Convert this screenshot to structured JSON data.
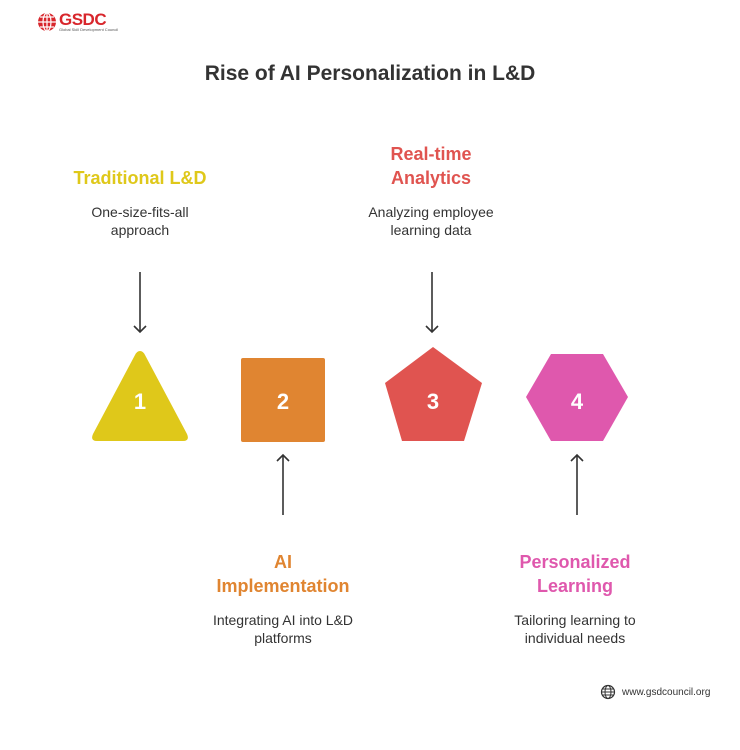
{
  "brand": {
    "logo_text": "GSDC",
    "logo_tagline": "Global Skill Development Council"
  },
  "title": "Rise of AI Personalization in L&D",
  "stages": [
    {
      "number": "1",
      "title": "Traditional L&D",
      "description_line1": "One-size-fits-all",
      "description_line2": "approach",
      "color": "#dfc81a",
      "shape": "triangle"
    },
    {
      "number": "2",
      "title_line1": "AI",
      "title_line2": "Implementation",
      "description_line1": "Integrating AI into L&D",
      "description_line2": "platforms",
      "color": "#e08531",
      "shape": "square"
    },
    {
      "number": "3",
      "title_line1": "Real-time",
      "title_line2": "Analytics",
      "description_line1": "Analyzing employee",
      "description_line2": "learning data",
      "color": "#e05450",
      "shape": "pentagon"
    },
    {
      "number": "4",
      "title_line1": "Personalized",
      "title_line2": "Learning",
      "description_line1": "Tailoring learning to",
      "description_line2": "individual needs",
      "color": "#df58ad",
      "shape": "hexagon"
    }
  ],
  "footer": {
    "url": "www.gsdcouncil.org"
  }
}
